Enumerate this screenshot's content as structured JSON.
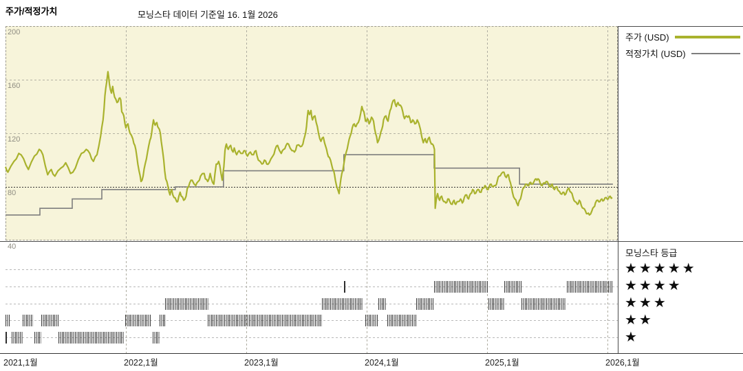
{
  "header": {
    "title": "주가/적정가치",
    "subtitle": "모닝스타 데이터 기준일 16. 1월 2026"
  },
  "legend": {
    "price_label": "주가 (USD)",
    "fair_value_label": "적정가치 (USD)"
  },
  "rating_legend": {
    "title": "모닝스타 등급",
    "star_char": "★",
    "rows": [
      5,
      4,
      3,
      2,
      1
    ]
  },
  "colors": {
    "price_line": "#a9b22d",
    "fair_value_line": "#7d7d7d",
    "chart_background": "#f7f4da",
    "grid": "#b3b1a2",
    "grid_emphasis": "#2f2f2f",
    "rating_mark": "#2d2d2d",
    "axis": "#333333"
  },
  "chart_data": {
    "type": "line",
    "title": "주가/적정가치",
    "x_axis": {
      "labels": [
        "2021,1월",
        "2022,1월",
        "2023,1월",
        "2024,1월",
        "2025,1월",
        "2026,1월"
      ],
      "unit": "year-month"
    },
    "y_axis": {
      "ticks": [
        200,
        160,
        120,
        80,
        40
      ],
      "range": [
        40,
        200
      ],
      "emphasized_tick": 80,
      "unit": "USD"
    },
    "legend_position": "top-right",
    "grid": true,
    "series": [
      {
        "name": "주가 (USD)",
        "kind": "line",
        "x_unit": "years since 2021-01",
        "points": [
          [
            0,
            95
          ],
          [
            0.02,
            91
          ],
          [
            0.07,
            99
          ],
          [
            0.11,
            105
          ],
          [
            0.15,
            101
          ],
          [
            0.19,
            93
          ],
          [
            0.24,
            103
          ],
          [
            0.28,
            108
          ],
          [
            0.31,
            104
          ],
          [
            0.35,
            89
          ],
          [
            0.38,
            93
          ],
          [
            0.41,
            88
          ],
          [
            0.46,
            94
          ],
          [
            0.5,
            98
          ],
          [
            0.54,
            90
          ],
          [
            0.58,
            94
          ],
          [
            0.63,
            105
          ],
          [
            0.67,
            108
          ],
          [
            0.7,
            105
          ],
          [
            0.73,
            99
          ],
          [
            0.76,
            104
          ],
          [
            0.79,
            118
          ],
          [
            0.81,
            130
          ],
          [
            0.826,
            148
          ],
          [
            0.84,
            158
          ],
          [
            0.851,
            166
          ],
          [
            0.863,
            157
          ],
          [
            0.88,
            150
          ],
          [
            0.89,
            155
          ],
          [
            0.906,
            147
          ],
          [
            0.926,
            143
          ],
          [
            0.943,
            146
          ],
          [
            0.957,
            145
          ],
          [
            0.966,
            136
          ],
          [
            0.983,
            133
          ],
          [
            1.0,
            124
          ],
          [
            1.017,
            127
          ],
          [
            1.034,
            120
          ],
          [
            1.057,
            116
          ],
          [
            1.074,
            111
          ],
          [
            1.09,
            103
          ],
          [
            1.109,
            92
          ],
          [
            1.126,
            84
          ],
          [
            1.143,
            88
          ],
          [
            1.16,
            97
          ],
          [
            1.18,
            106
          ],
          [
            1.2,
            115
          ],
          [
            1.214,
            120
          ],
          [
            1.229,
            130
          ],
          [
            1.243,
            126
          ],
          [
            1.257,
            128
          ],
          [
            1.271,
            124
          ],
          [
            1.286,
            120
          ],
          [
            1.3,
            110
          ],
          [
            1.314,
            100
          ],
          [
            1.331,
            86
          ],
          [
            1.35,
            80
          ],
          [
            1.366,
            74
          ],
          [
            1.38,
            78
          ],
          [
            1.4,
            72
          ],
          [
            1.417,
            70
          ],
          [
            1.43,
            69
          ],
          [
            1.45,
            76
          ],
          [
            1.46,
            73
          ],
          [
            1.48,
            70
          ],
          [
            1.5,
            73
          ],
          [
            1.51,
            79
          ],
          [
            1.53,
            83
          ],
          [
            1.55,
            85
          ],
          [
            1.58,
            81
          ],
          [
            1.6,
            84
          ],
          [
            1.62,
            88
          ],
          [
            1.65,
            90
          ],
          [
            1.66,
            86
          ],
          [
            1.68,
            84
          ],
          [
            1.7,
            90
          ],
          [
            1.71,
            86
          ],
          [
            1.73,
            82
          ],
          [
            1.75,
            97
          ],
          [
            1.77,
            99
          ],
          [
            1.78,
            96
          ],
          [
            1.8,
            85
          ],
          [
            1.814,
            95
          ],
          [
            1.823,
            107
          ],
          [
            1.835,
            112
          ],
          [
            1.85,
            108
          ],
          [
            1.87,
            111
          ],
          [
            1.89,
            106
          ],
          [
            1.9,
            109
          ],
          [
            1.92,
            104
          ],
          [
            1.94,
            107
          ],
          [
            1.97,
            105
          ],
          [
            1.99,
            107
          ],
          [
            2.01,
            103
          ],
          [
            2.034,
            106
          ],
          [
            2.06,
            104
          ],
          [
            2.08,
            107
          ],
          [
            2.1,
            100
          ],
          [
            2.13,
            97
          ],
          [
            2.15,
            100
          ],
          [
            2.17,
            97
          ],
          [
            2.19,
            98
          ],
          [
            2.22,
            103
          ],
          [
            2.24,
            108
          ],
          [
            2.26,
            111
          ],
          [
            2.29,
            105
          ],
          [
            2.31,
            108
          ],
          [
            2.33,
            111
          ],
          [
            2.35,
            112
          ],
          [
            2.38,
            107
          ],
          [
            2.4,
            106
          ],
          [
            2.42,
            111
          ],
          [
            2.45,
            110
          ],
          [
            2.47,
            112
          ],
          [
            2.486,
            118
          ],
          [
            2.5,
            125
          ],
          [
            2.514,
            137
          ],
          [
            2.526,
            134
          ],
          [
            2.537,
            137
          ],
          [
            2.55,
            130
          ],
          [
            2.57,
            133
          ],
          [
            2.59,
            125
          ],
          [
            2.6,
            120
          ],
          [
            2.62,
            114
          ],
          [
            2.64,
            117
          ],
          [
            2.66,
            110
          ],
          [
            2.674,
            105
          ],
          [
            2.69,
            102
          ],
          [
            2.71,
            96
          ],
          [
            2.726,
            92
          ],
          [
            2.74,
            85
          ],
          [
            2.76,
            78
          ],
          [
            2.771,
            75
          ],
          [
            2.78,
            82
          ],
          [
            2.794,
            90
          ],
          [
            2.81,
            97
          ],
          [
            2.83,
            106
          ],
          [
            2.846,
            112
          ],
          [
            2.863,
            118
          ],
          [
            2.88,
            124
          ],
          [
            2.897,
            127
          ],
          [
            2.91,
            125
          ],
          [
            2.93,
            128
          ],
          [
            2.95,
            135
          ],
          [
            2.96,
            140
          ],
          [
            2.977,
            136
          ],
          [
            2.99,
            129
          ],
          [
            3.006,
            131
          ],
          [
            3.02,
            127
          ],
          [
            3.04,
            132
          ],
          [
            3.057,
            129
          ],
          [
            3.074,
            120
          ],
          [
            3.09,
            113
          ],
          [
            3.11,
            118
          ],
          [
            3.126,
            123
          ],
          [
            3.14,
            130
          ],
          [
            3.16,
            133
          ],
          [
            3.177,
            129
          ],
          [
            3.194,
            137
          ],
          [
            3.21,
            142
          ],
          [
            3.23,
            145
          ],
          [
            3.246,
            140
          ],
          [
            3.26,
            143
          ],
          [
            3.28,
            141
          ],
          [
            3.3,
            136
          ],
          [
            3.314,
            131
          ],
          [
            3.33,
            133
          ],
          [
            3.35,
            133
          ],
          [
            3.366,
            128
          ],
          [
            3.383,
            130
          ],
          [
            3.4,
            127
          ],
          [
            3.42,
            130
          ],
          [
            3.446,
            123
          ],
          [
            3.47,
            113
          ],
          [
            3.486,
            116
          ],
          [
            3.5,
            113
          ],
          [
            3.52,
            117
          ],
          [
            3.537,
            112
          ],
          [
            3.554,
            111
          ],
          [
            3.563,
            108
          ],
          [
            3.569,
            64
          ],
          [
            3.577,
            70
          ],
          [
            3.589,
            75
          ],
          [
            3.606,
            70
          ],
          [
            3.623,
            73
          ],
          [
            3.64,
            69
          ],
          [
            3.657,
            68
          ],
          [
            3.674,
            71
          ],
          [
            3.69,
            69
          ],
          [
            3.71,
            67
          ],
          [
            3.726,
            70
          ],
          [
            3.74,
            67
          ],
          [
            3.76,
            69
          ],
          [
            3.78,
            71
          ],
          [
            3.794,
            68
          ],
          [
            3.81,
            72
          ],
          [
            3.83,
            74
          ],
          [
            3.846,
            71
          ],
          [
            3.863,
            75
          ],
          [
            3.88,
            78
          ],
          [
            3.897,
            75
          ],
          [
            3.914,
            77
          ],
          [
            3.93,
            78
          ],
          [
            3.95,
            76
          ],
          [
            3.966,
            79
          ],
          [
            3.983,
            81
          ],
          [
            4.0,
            78
          ],
          [
            4.017,
            80
          ],
          [
            4.034,
            82
          ],
          [
            4.05,
            80
          ],
          [
            4.07,
            81
          ],
          [
            4.086,
            85
          ],
          [
            4.1,
            88
          ],
          [
            4.12,
            90
          ],
          [
            4.14,
            91
          ],
          [
            4.16,
            87
          ],
          [
            4.177,
            89
          ],
          [
            4.194,
            83
          ],
          [
            4.21,
            76
          ],
          [
            4.23,
            71
          ],
          [
            4.246,
            68
          ],
          [
            4.257,
            66
          ],
          [
            4.27,
            70
          ],
          [
            4.286,
            74
          ],
          [
            4.3,
            79
          ],
          [
            4.32,
            82
          ],
          [
            4.337,
            81
          ],
          [
            4.354,
            83
          ],
          [
            4.37,
            82
          ],
          [
            4.39,
            84
          ],
          [
            4.406,
            86
          ],
          [
            4.423,
            86
          ],
          [
            4.44,
            83
          ],
          [
            4.457,
            81
          ],
          [
            4.474,
            83
          ],
          [
            4.49,
            84
          ],
          [
            4.51,
            82
          ],
          [
            4.526,
            80
          ],
          [
            4.54,
            82
          ],
          [
            4.56,
            78
          ],
          [
            4.58,
            80
          ],
          [
            4.594,
            77
          ],
          [
            4.61,
            75
          ],
          [
            4.63,
            76
          ],
          [
            4.646,
            74
          ],
          [
            4.663,
            77
          ],
          [
            4.68,
            79
          ],
          [
            4.697,
            76
          ],
          [
            4.714,
            72
          ],
          [
            4.73,
            69
          ],
          [
            4.75,
            67
          ],
          [
            4.766,
            70
          ],
          [
            4.783,
            66
          ],
          [
            4.8,
            64
          ],
          [
            4.817,
            62
          ],
          [
            4.834,
            60
          ],
          [
            4.85,
            59
          ],
          [
            4.87,
            62
          ],
          [
            4.886,
            65
          ],
          [
            4.9,
            68
          ],
          [
            4.92,
            70
          ],
          [
            4.937,
            69
          ],
          [
            4.954,
            71
          ],
          [
            4.97,
            70
          ],
          [
            4.99,
            72
          ],
          [
            5.006,
            71
          ],
          [
            5.023,
            73
          ],
          [
            5.04,
            72
          ]
        ]
      },
      {
        "name": "적정가치 (USD)",
        "kind": "step",
        "x_unit": "years since 2021-01",
        "points": [
          [
            0,
            59
          ],
          [
            0.286,
            64
          ],
          [
            0.554,
            71
          ],
          [
            0.8,
            78
          ],
          [
            1.41,
            80
          ],
          [
            1.81,
            92
          ],
          [
            2.81,
            104
          ],
          [
            3.56,
            94
          ],
          [
            4.27,
            82
          ],
          [
            5.045,
            82
          ]
        ]
      }
    ],
    "rating_timeline": {
      "row_values": [
        5,
        4,
        3,
        2,
        1
      ],
      "x_unit": "years since 2021-01",
      "segments": [
        {
          "from": 0.0,
          "to": 0.035,
          "stars": 2
        },
        {
          "from": 0.0,
          "to": 0.006,
          "stars": 1
        },
        {
          "from": 0.051,
          "to": 0.143,
          "stars": 1
        },
        {
          "from": 0.143,
          "to": 0.229,
          "stars": 2
        },
        {
          "from": 0.24,
          "to": 0.297,
          "stars": 1
        },
        {
          "from": 0.297,
          "to": 0.44,
          "stars": 2
        },
        {
          "from": 0.44,
          "to": 0.99,
          "stars": 1
        },
        {
          "from": 0.994,
          "to": 1.211,
          "stars": 2
        },
        {
          "from": 1.223,
          "to": 1.28,
          "stars": 1
        },
        {
          "from": 1.28,
          "to": 1.326,
          "stars": 2
        },
        {
          "from": 1.326,
          "to": 1.686,
          "stars": 3
        },
        {
          "from": 1.68,
          "to": 2.63,
          "stars": 2
        },
        {
          "from": 2.63,
          "to": 2.97,
          "stars": 3
        },
        {
          "from": 2.81,
          "to": 2.822,
          "stars": 4
        },
        {
          "from": 2.986,
          "to": 3.097,
          "stars": 2
        },
        {
          "from": 3.097,
          "to": 3.166,
          "stars": 3
        },
        {
          "from": 3.171,
          "to": 3.411,
          "stars": 2
        },
        {
          "from": 3.411,
          "to": 3.56,
          "stars": 3
        },
        {
          "from": 3.56,
          "to": 4.011,
          "stars": 4
        },
        {
          "from": 4.011,
          "to": 4.143,
          "stars": 3
        },
        {
          "from": 4.143,
          "to": 4.286,
          "stars": 4
        },
        {
          "from": 4.286,
          "to": 4.66,
          "stars": 3
        },
        {
          "from": 4.66,
          "to": 5.04,
          "stars": 4
        }
      ]
    }
  }
}
